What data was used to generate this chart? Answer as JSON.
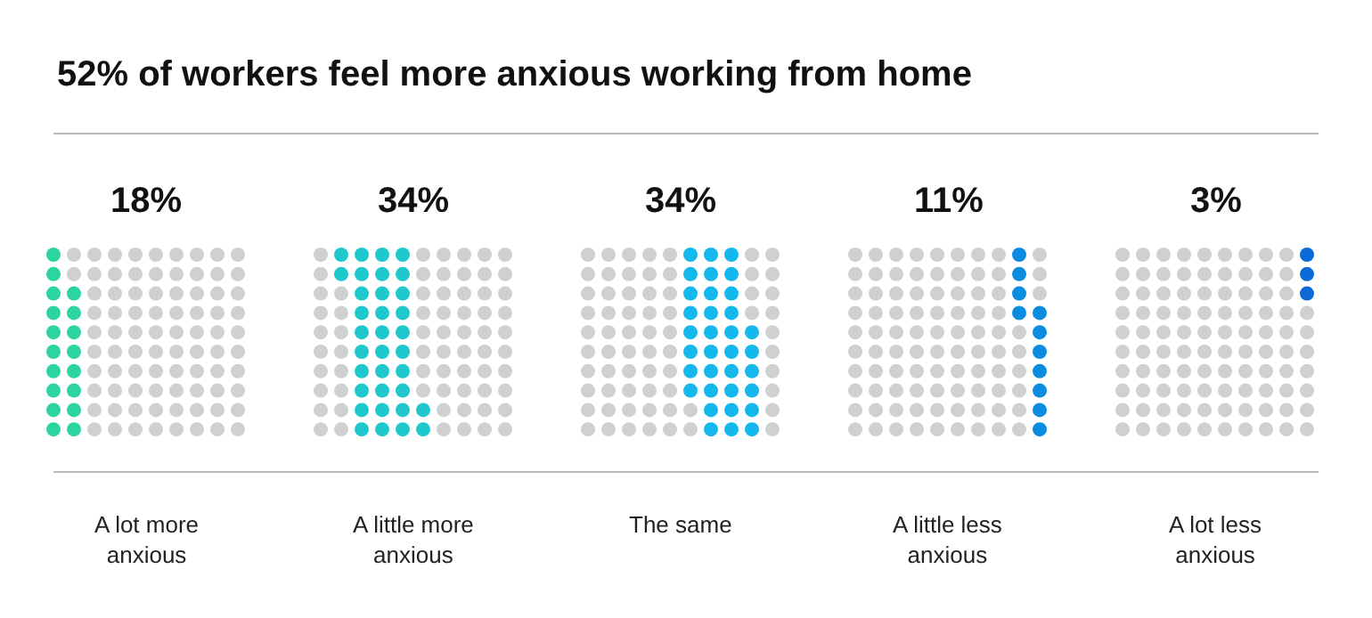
{
  "chart_data": {
    "type": "other",
    "title": "52% of workers feel more anxious working from home",
    "categories": [
      "A lot more anxious",
      "A little more anxious",
      "The same",
      "A little less anxious",
      "A lot less anxious"
    ],
    "values": [
      18,
      34,
      34,
      11,
      3
    ],
    "value_labels": [
      "18%",
      "34%",
      "34%",
      "11%",
      "3%"
    ],
    "colors": [
      "#2bd4a0",
      "#1ec8cc",
      "#14b8ec",
      "#0a8ce0",
      "#0a6ad8"
    ]
  }
}
